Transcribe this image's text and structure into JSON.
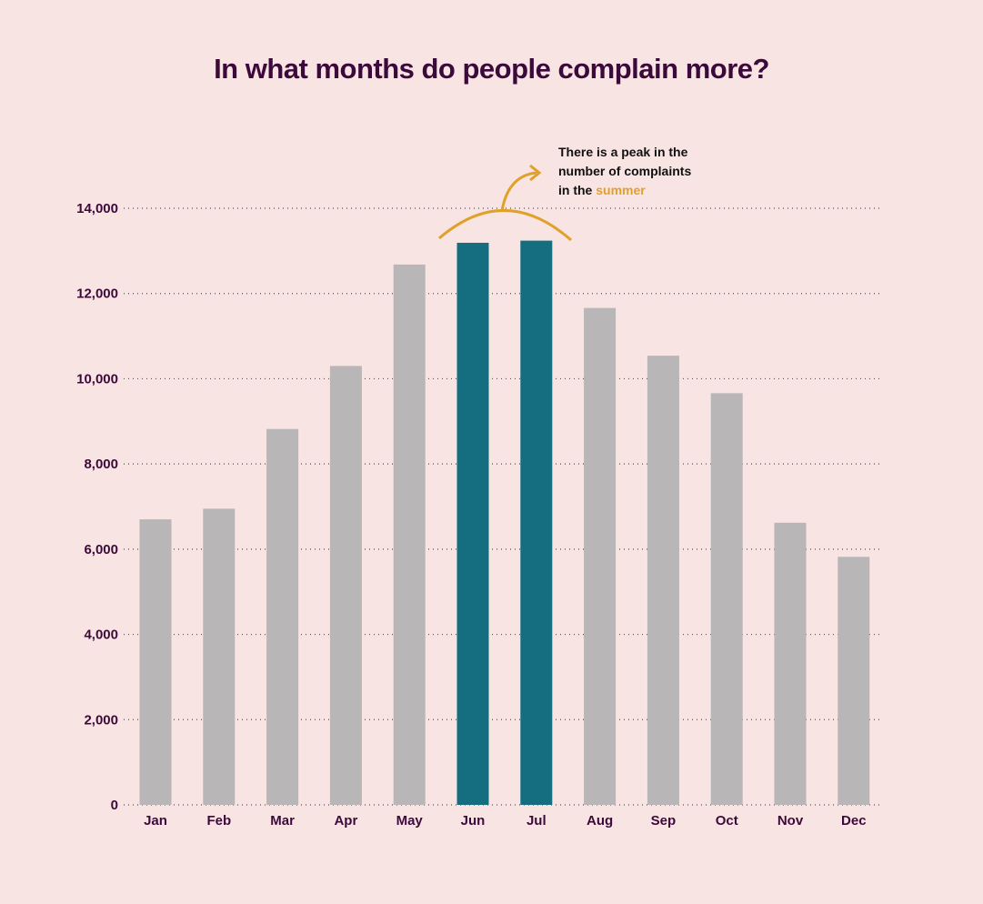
{
  "chart_data": {
    "type": "bar",
    "title": "In what months do people complain more?",
    "xlabel": "",
    "ylabel": "",
    "categories": [
      "Jan",
      "Feb",
      "Mar",
      "Apr",
      "May",
      "Jun",
      "Jul",
      "Aug",
      "Sep",
      "Oct",
      "Nov",
      "Dec"
    ],
    "values": [
      6700,
      6950,
      8820,
      10300,
      12680,
      13190,
      13240,
      11660,
      10540,
      9660,
      6620,
      5820
    ],
    "highlighted": [
      "Jun",
      "Jul"
    ],
    "ylim": [
      0,
      14000
    ],
    "yticks": [
      0,
      2000,
      4000,
      6000,
      8000,
      10000,
      12000,
      14000
    ],
    "ytick_labels": [
      "0",
      "2,000",
      "4,000",
      "6,000",
      "8,000",
      "10,000",
      "12,000",
      "14,000"
    ],
    "grid": "horizontal dotted",
    "annotation": {
      "lines": [
        "There is a peak in the",
        "number of complaints",
        "in the "
      ],
      "highlight_word": "summer"
    }
  },
  "colors": {
    "background": "#f9e4e4",
    "bar": "#b8b6b6",
    "bar_highlight": "#146e80",
    "text": "#3b0a3a",
    "accent": "#e0a12a",
    "grid": "#555555"
  }
}
